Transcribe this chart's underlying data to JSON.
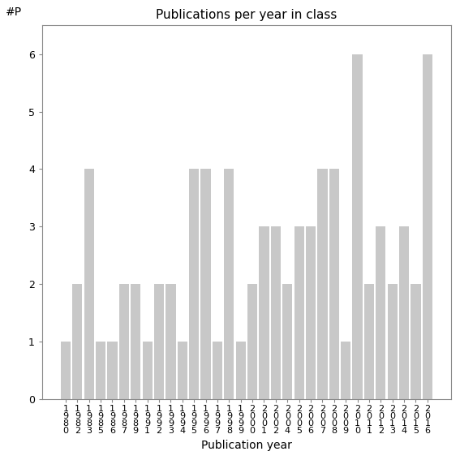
{
  "title": "Publications per year in class",
  "xlabel": "Publication year",
  "ylabel": "#P",
  "bar_color": "#c8c8c8",
  "bar_edgecolor": "#c8c8c8",
  "ylim": [
    0,
    6.5
  ],
  "yticks": [
    0,
    1,
    2,
    3,
    4,
    5,
    6
  ],
  "categories": [
    "1980",
    "1982",
    "1983",
    "1985",
    "1986",
    "1987",
    "1989",
    "1991",
    "1992",
    "1993",
    "1994",
    "1995",
    "1996",
    "1997",
    "1998",
    "1999",
    "2000",
    "2001",
    "2002",
    "2004",
    "2005",
    "2006",
    "2007",
    "2008",
    "2009",
    "2010",
    "2011",
    "2012",
    "2013",
    "2014",
    "2015",
    "2016"
  ],
  "values": [
    1,
    2,
    4,
    1,
    1,
    2,
    2,
    1,
    2,
    2,
    1,
    4,
    4,
    1,
    4,
    1,
    2,
    3,
    3,
    2,
    3,
    3,
    4,
    4,
    1,
    6,
    2,
    3,
    2,
    3,
    2,
    6
  ],
  "title_fontsize": 11,
  "axis_label_fontsize": 10,
  "tick_label_fontsize": 8
}
